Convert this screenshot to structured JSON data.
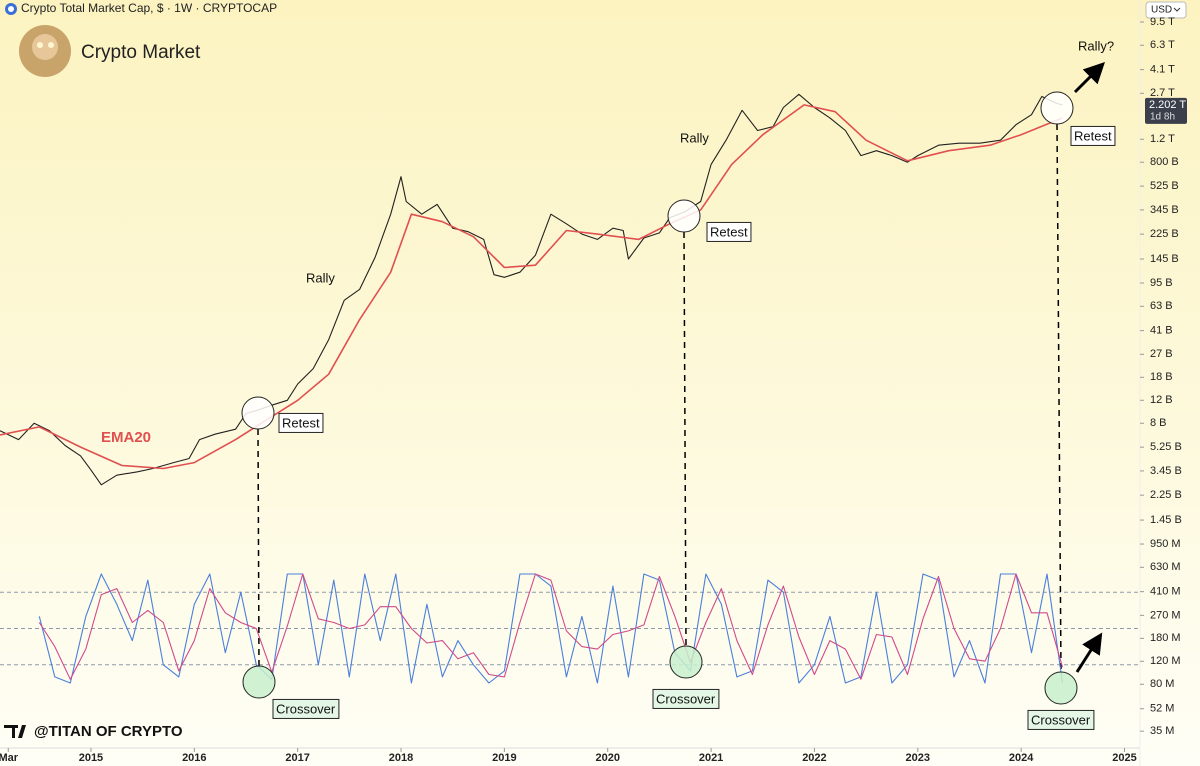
{
  "header": {
    "symbol_title": "Crypto Total Market Cap, $ · 1W · CRYPTOCAP",
    "chart_name": "Crypto Market",
    "currency": "USD",
    "watermark": "@TITAN OF CRYPTO"
  },
  "chart_data": [
    {
      "type": "line",
      "log_scale": true,
      "xlim": [
        2014.12,
        2025.15
      ],
      "xticks": [
        {
          "value": 2014.2,
          "label": "Mar"
        },
        2015,
        2016,
        2017,
        2018,
        2019,
        2020,
        2021,
        2022,
        2023,
        2024,
        2025
      ],
      "ylim": [
        26000000,
        14000000000000
      ],
      "yticks": [
        {
          "value": 9500000000000,
          "label": "9.5 T"
        },
        {
          "value": 6300000000000,
          "label": "6.3 T"
        },
        {
          "value": 4100000000000,
          "label": "4.1 T"
        },
        {
          "value": 2700000000000,
          "label": "2.7 T"
        },
        {
          "value": 1200000000000,
          "label": "1.2 T"
        },
        {
          "value": 800000000000,
          "label": "800 B"
        },
        {
          "value": 525000000000,
          "label": "525 B"
        },
        {
          "value": 345000000000,
          "label": "345 B"
        },
        {
          "value": 225000000000,
          "label": "225 B"
        },
        {
          "value": 145000000000,
          "label": "145 B"
        },
        {
          "value": 95000000000,
          "label": "95 B"
        },
        {
          "value": 63000000000,
          "label": "63 B"
        },
        {
          "value": 41000000000,
          "label": "41 B"
        },
        {
          "value": 27000000000,
          "label": "27 B"
        },
        {
          "value": 18000000000,
          "label": "18 B"
        },
        {
          "value": 12000000000,
          "label": "12 B"
        },
        {
          "value": 8000000000,
          "label": "8 B"
        },
        {
          "value": 5250000000,
          "label": "5.25 B"
        },
        {
          "value": 3450000000,
          "label": "3.45 B"
        },
        {
          "value": 2250000000,
          "label": "2.25 B"
        },
        {
          "value": 1450000000,
          "label": "1.45 B"
        },
        {
          "value": 950000000,
          "label": "950 M"
        },
        {
          "value": 630000000,
          "label": "630 M"
        },
        {
          "value": 410000000,
          "label": "410 M"
        },
        {
          "value": 270000000,
          "label": "270 M"
        },
        {
          "value": 180000000,
          "label": "180 M"
        },
        {
          "value": 120000000,
          "label": "120 M"
        },
        {
          "value": 80000000,
          "label": "80 M"
        },
        {
          "value": 52000000,
          "label": "52 M"
        },
        {
          "value": 35000000,
          "label": "35 M"
        }
      ],
      "series": [
        {
          "color": "#222222",
          "x": [
            2014.12,
            2014.3,
            2014.45,
            2014.6,
            2014.75,
            2014.9,
            2015,
            2015.1,
            2015.25,
            2015.45,
            2015.6,
            2015.8,
            2015.95,
            2016.05,
            2016.2,
            2016.4,
            2016.5,
            2016.6,
            2016.75,
            2016.9,
            2017,
            2017.15,
            2017.3,
            2017.45,
            2017.6,
            2017.75,
            2017.9,
            2018,
            2018.05,
            2018.2,
            2018.35,
            2018.5,
            2018.65,
            2018.8,
            2018.9,
            2019,
            2019.15,
            2019.3,
            2019.45,
            2019.6,
            2019.75,
            2019.9,
            2020.05,
            2020.15,
            2020.2,
            2020.35,
            2020.5,
            2020.6,
            2020.75,
            2020.9,
            2021,
            2021.15,
            2021.3,
            2021.45,
            2021.6,
            2021.7,
            2021.85,
            2022,
            2022.15,
            2022.3,
            2022.45,
            2022.6,
            2022.75,
            2022.9,
            2023,
            2023.2,
            2023.4,
            2023.6,
            2023.8,
            2023.95,
            2024.1,
            2024.2,
            2024.35,
            2024.4
          ],
          "values": [
            7000000000.0,
            6000000000.0,
            8000000000.0,
            7000000000.0,
            5400000000.0,
            4500000000.0,
            3500000000.0,
            2700000000.0,
            3200000000.0,
            3400000000.0,
            3600000000.0,
            4000000000.0,
            4300000000.0,
            6000000000.0,
            6600000000.0,
            7200000000.0,
            9500000000.0,
            10000000000.0,
            11000000000.0,
            12000000000.0,
            16000000000.0,
            21000000000.0,
            35000000000.0,
            70000000000.0,
            85000000000.0,
            150000000000.0,
            320000000000.0,
            620000000000.0,
            400000000000.0,
            320000000000.0,
            380000000000.0,
            250000000000.0,
            235000000000.0,
            205000000000.0,
            110000000000.0,
            105000000000.0,
            115000000000.0,
            155000000000.0,
            320000000000.0,
            270000000000.0,
            225000000000.0,
            205000000000.0,
            250000000000.0,
            240000000000.0,
            145000000000.0,
            210000000000.0,
            230000000000.0,
            300000000000.0,
            335000000000.0,
            400000000000.0,
            770000000000.0,
            1200000000000.0,
            2000000000000.0,
            1400000000000.0,
            1500000000000.0,
            2100000000000.0,
            2650000000000.0,
            2100000000000.0,
            1750000000000.0,
            1400000000000.0,
            900000000000.0,
            980000000000.0,
            900000000000.0,
            800000000000.0,
            900000000000.0,
            1080000000000.0,
            1120000000000.0,
            1120000000000.0,
            1180000000000.0,
            1550000000000.0,
            1850000000000.0,
            2550000000000.0,
            2250000000000.0,
            2202000000000.0
          ]
        },
        {
          "name": "EMA20",
          "color": "#e05050",
          "x": [
            2014.12,
            2014.5,
            2014.9,
            2015.3,
            2015.7,
            2016,
            2016.4,
            2016.7,
            2017,
            2017.3,
            2017.6,
            2017.9,
            2018.1,
            2018.4,
            2018.7,
            2019,
            2019.3,
            2019.6,
            2019.9,
            2020.3,
            2020.6,
            2020.9,
            2021.2,
            2021.5,
            2021.9,
            2022.2,
            2022.5,
            2022.9,
            2023.3,
            2023.7,
            2024,
            2024.4
          ],
          "values": [
            6500000000.0,
            7500000000.0,
            5250000000.0,
            3800000000.0,
            3600000000.0,
            4000000000.0,
            6000000000.0,
            8500000000.0,
            12000000000.0,
            19000000000.0,
            50000000000.0,
            115000000000.0,
            320000000000.0,
            280000000000.0,
            215000000000.0,
            125000000000.0,
            130000000000.0,
            240000000000.0,
            225000000000.0,
            205000000000.0,
            270000000000.0,
            345000000000.0,
            770000000000.0,
            1300000000000.0,
            2200000000000.0,
            1950000000000.0,
            1180000000000.0,
            820000000000.0,
            980000000000.0,
            1080000000000.0,
            1300000000000.0,
            1750000000000.0
          ]
        }
      ],
      "last_price": {
        "value": 2202000000000,
        "label": "2.202 T"
      },
      "countdown": "1d 8h",
      "annotations": [
        "Rally",
        "Rally",
        "Rally?",
        "Retest",
        "Retest",
        "Retest"
      ]
    },
    {
      "type": "line",
      "ylim": [
        0,
        100
      ],
      "levels": [
        20,
        50,
        80
      ],
      "x": [
        2014.5,
        2014.65,
        2014.8,
        2014.95,
        2015.1,
        2015.25,
        2015.4,
        2015.55,
        2015.7,
        2015.85,
        2016,
        2016.15,
        2016.3,
        2016.45,
        2016.6,
        2016.75,
        2016.9,
        2017.05,
        2017.2,
        2017.35,
        2017.5,
        2017.65,
        2017.8,
        2017.95,
        2018.1,
        2018.25,
        2018.4,
        2018.55,
        2018.7,
        2018.85,
        2019,
        2019.15,
        2019.3,
        2019.45,
        2019.6,
        2019.75,
        2019.9,
        2020.05,
        2020.2,
        2020.35,
        2020.5,
        2020.65,
        2020.8,
        2020.95,
        2021.1,
        2021.25,
        2021.4,
        2021.55,
        2021.7,
        2021.85,
        2022,
        2022.15,
        2022.3,
        2022.45,
        2022.6,
        2022.75,
        2022.9,
        2023.05,
        2023.2,
        2023.35,
        2023.5,
        2023.65,
        2023.8,
        2023.95,
        2024.1,
        2024.25,
        2024.4
      ],
      "series": [
        {
          "color": "#4a7fdc",
          "values": [
            60,
            10,
            5,
            60,
            95,
            70,
            40,
            90,
            20,
            10,
            70,
            95,
            30,
            80,
            20,
            8,
            95,
            95,
            20,
            90,
            10,
            95,
            40,
            95,
            5,
            70,
            10,
            40,
            20,
            5,
            15,
            95,
            95,
            85,
            10,
            60,
            5,
            85,
            10,
            95,
            90,
            30,
            15,
            95,
            70,
            10,
            15,
            90,
            80,
            5,
            20,
            60,
            5,
            10,
            80,
            5,
            20,
            95,
            90,
            10,
            40,
            5,
            95,
            95,
            30,
            95,
            5
          ]
        },
        {
          "color": "#d04a8c",
          "values": [
            55,
            35,
            8,
            33,
            78,
            83,
            55,
            65,
            55,
            15,
            40,
            83,
            63,
            55,
            50,
            14,
            52,
            95,
            58,
            55,
            50,
            53,
            68,
            68,
            50,
            38,
            40,
            25,
            30,
            12,
            10,
            55,
            95,
            90,
            48,
            35,
            33,
            45,
            48,
            53,
            93,
            60,
            22,
            55,
            83,
            40,
            12,
            53,
            85,
            43,
            12,
            40,
            33,
            8,
            45,
            43,
            12,
            58,
            93,
            50,
            25,
            23,
            50,
            95,
            63,
            63,
            18
          ]
        }
      ],
      "annotations": [
        "Crossover",
        "Crossover",
        "Crossover"
      ]
    }
  ]
}
